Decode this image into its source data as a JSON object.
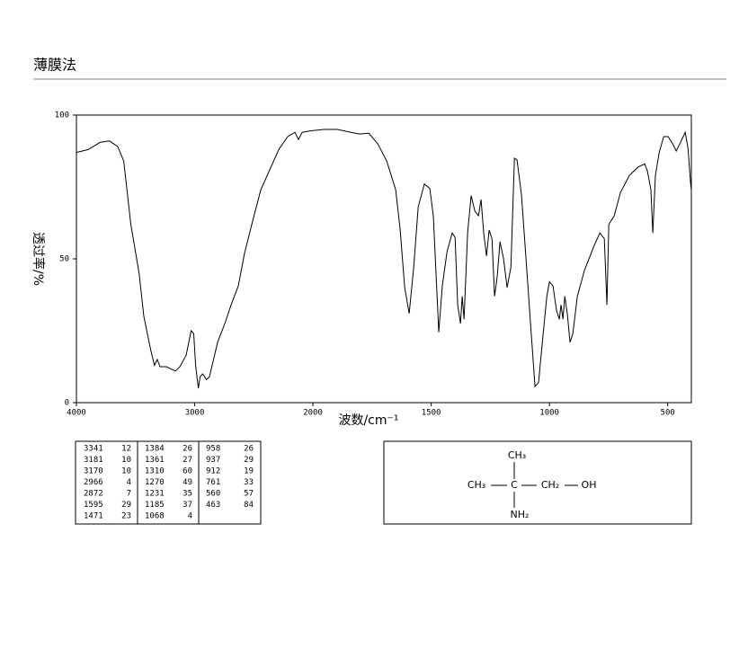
{
  "header": {
    "title": "薄膜法"
  },
  "chart_data": {
    "type": "line",
    "xlabel": "波数/cm⁻¹",
    "ylabel": "透过率/%",
    "xlim": [
      4000,
      400
    ],
    "xticks": [
      4000,
      3000,
      2000,
      1500,
      1000,
      500
    ],
    "ylim": [
      0,
      100
    ],
    "yticks": [
      0,
      50,
      100
    ],
    "color": "#000000",
    "x": [
      4000,
      3900,
      3800,
      3720,
      3650,
      3600,
      3540,
      3470,
      3430,
      3370,
      3340,
      3316,
      3293,
      3240,
      3163,
      3125,
      3072,
      3030,
      3008,
      2992,
      2969,
      2954,
      2932,
      2901,
      2875,
      2852,
      2806,
      2745,
      2692,
      2631,
      2578,
      2517,
      2441,
      2365,
      2289,
      2213,
      2152,
      2122,
      2091,
      2023,
      1954,
      1897,
      1840,
      1802,
      1764,
      1726,
      1688,
      1650,
      1631,
      1612,
      1593,
      1574,
      1555,
      1529,
      1506,
      1491,
      1475,
      1468,
      1453,
      1433,
      1411,
      1399,
      1388,
      1376,
      1369,
      1361,
      1346,
      1331,
      1315,
      1300,
      1289,
      1278,
      1266,
      1255,
      1243,
      1232,
      1221,
      1209,
      1194,
      1179,
      1163,
      1148,
      1137,
      1118,
      1099,
      1080,
      1061,
      1046,
      1030,
      1011,
      1000,
      985,
      970,
      958,
      951,
      943,
      935,
      924,
      913,
      901,
      882,
      852,
      814,
      787,
      768,
      757,
      749,
      726,
      700,
      662,
      624,
      597,
      586,
      571,
      563,
      552,
      536,
      517,
      498,
      479,
      464,
      445,
      426,
      414,
      403,
      400
    ],
    "values": [
      87,
      88,
      90.5,
      91,
      89,
      84,
      62,
      45,
      30,
      18,
      13,
      15,
      12.5,
      12.5,
      11,
      12.5,
      16.5,
      25,
      24,
      13,
      5,
      9,
      10,
      8,
      9,
      13,
      21,
      27.5,
      34,
      40.6,
      52,
      62,
      74,
      81,
      88,
      92.5,
      94,
      91.5,
      94,
      94.5,
      95,
      95,
      94,
      93.4,
      93.7,
      90,
      84,
      74,
      60,
      40,
      31,
      47,
      68,
      76,
      74.5,
      65,
      37,
      24.5,
      40.6,
      52.5,
      59,
      57.5,
      34,
      27.5,
      37,
      29,
      59,
      72,
      66.5,
      65,
      70.6,
      59,
      51,
      60,
      57,
      37,
      43.7,
      56,
      50,
      40,
      47,
      85,
      84.4,
      72,
      50,
      27.5,
      5.6,
      7,
      21,
      37,
      42,
      40.6,
      32,
      29,
      34,
      29,
      37,
      30.6,
      21,
      24,
      37,
      46,
      54,
      59,
      57,
      34,
      62,
      65,
      73,
      79,
      82,
      83,
      80.6,
      74,
      59,
      79,
      87,
      92.5,
      92.5,
      90,
      87.5,
      90.6,
      94,
      88.4,
      76,
      74
    ]
  },
  "peak_table": {
    "columns": [
      [
        [
          "3341",
          "12"
        ],
        [
          "3181",
          "10"
        ],
        [
          "3170",
          "10"
        ],
        [
          "2966",
          "4"
        ],
        [
          "2872",
          "7"
        ],
        [
          "1595",
          "29"
        ],
        [
          "1471",
          "23"
        ]
      ],
      [
        [
          "1384",
          "26"
        ],
        [
          "1361",
          "27"
        ],
        [
          "1310",
          "60"
        ],
        [
          "1270",
          "49"
        ],
        [
          "1231",
          "35"
        ],
        [
          "1185",
          "37"
        ],
        [
          "1068",
          "4"
        ]
      ],
      [
        [
          "958",
          "26"
        ],
        [
          "937",
          "29"
        ],
        [
          "912",
          "19"
        ],
        [
          "761",
          "33"
        ],
        [
          "560",
          "57"
        ],
        [
          "463",
          "84"
        ]
      ]
    ]
  },
  "structure": {
    "top": "CH₃",
    "left": "CH₃",
    "center": "C",
    "right": "CH₂",
    "end": "OH",
    "bottom": "NH₂"
  }
}
